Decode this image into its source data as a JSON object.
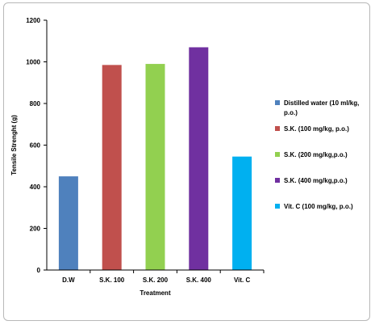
{
  "chart_data": {
    "type": "bar",
    "categories": [
      "D.W",
      "S.K. 100",
      "S.K. 200",
      "S.K. 400",
      "Vit. C"
    ],
    "values": [
      450,
      985,
      990,
      1070,
      545
    ],
    "colors": [
      "#4f81bd",
      "#c0504d",
      "#92d050",
      "#7030a0",
      "#00b0f0"
    ],
    "legend": [
      [
        "Distilled water (10 ml/kg,",
        "p.o.)"
      ],
      [
        "S.K. (100 mg/kg, p.o.)"
      ],
      [
        "S.K. (200 mg/kg,p.o.)"
      ],
      [
        "S.K. (400 mg/kg,p.o.)"
      ],
      [
        "Vit. C (100 mg/kg, p.o.)"
      ]
    ],
    "title": "",
    "xlabel": "Treatment",
    "ylabel": "Tensile Strenght (g)",
    "ylim": [
      0,
      1200
    ],
    "yticks": [
      0,
      200,
      400,
      600,
      800,
      1000,
      1200
    ],
    "grid": false,
    "legend_position": "right"
  }
}
